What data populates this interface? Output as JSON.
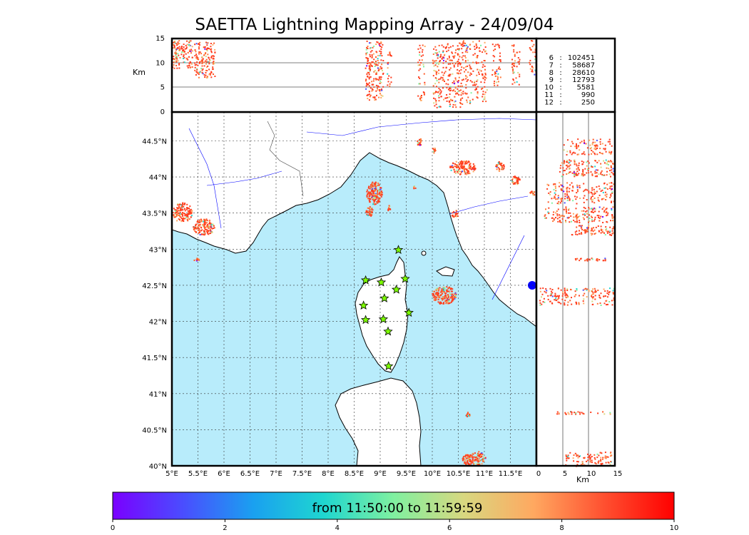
{
  "title": "SAETTA Lightning Mapping Array - 24/09/04",
  "altitude_unit": "Km",
  "altitude_ticks": [
    "0",
    "5",
    "10",
    "15"
  ],
  "lat_ticks": [
    "40°N",
    "40.5°N",
    "41°N",
    "41.5°N",
    "42°N",
    "42.5°N",
    "43°N",
    "43.5°N",
    "44°N",
    "44.5°N"
  ],
  "lon_ticks": [
    "5°E",
    "5.5°E",
    "6°E",
    "6.5°E",
    "7°E",
    "7.5°E",
    "8°E",
    "8.5°E",
    "9°E",
    "9.5°E",
    "10°E",
    "10.5°E",
    "11°E",
    "11.5°E"
  ],
  "station_counts": [
    {
      "stations": "6",
      "sep": ":",
      "count": "102451",
      "highlight": false
    },
    {
      "stations": "7",
      "sep": ":",
      "count": "58687",
      "highlight": true
    },
    {
      "stations": "8",
      "sep": ":",
      "count": "28610",
      "highlight": false
    },
    {
      "stations": "9",
      "sep": ":",
      "count": "12793",
      "highlight": false
    },
    {
      "stations": "10",
      "sep": ":",
      "count": "5581",
      "highlight": false
    },
    {
      "stations": "11",
      "sep": ":",
      "count": "990",
      "highlight": false
    },
    {
      "stations": "12",
      "sep": ":",
      "count": "250",
      "highlight": false
    }
  ],
  "colorbar": {
    "label": "from 11:50:00 to 11:59:59",
    "ticks": [
      "0",
      "2",
      "4",
      "6",
      "8",
      "10"
    ],
    "gradient": [
      "#7a00ff",
      "#4a4dff",
      "#1aa0f0",
      "#1ed6d0",
      "#7ff0a0",
      "#d8d880",
      "#ffa860",
      "#ff5030",
      "#ff0000"
    ]
  },
  "colors": {
    "sea": "#b8ecfb",
    "land": "#ffffff",
    "station": "#7cfc00",
    "highlight": "#ff0000",
    "river": "#0000ff"
  },
  "stations_lonlat": [
    [
      9.35,
      42.99
    ],
    [
      8.72,
      42.57
    ],
    [
      9.02,
      42.54
    ],
    [
      9.48,
      42.59
    ],
    [
      9.31,
      42.44
    ],
    [
      9.08,
      42.32
    ],
    [
      8.68,
      42.22
    ],
    [
      9.55,
      42.12
    ],
    [
      8.72,
      42.02
    ],
    [
      9.06,
      42.03
    ],
    [
      9.15,
      41.86
    ],
    [
      9.16,
      41.38
    ]
  ]
}
